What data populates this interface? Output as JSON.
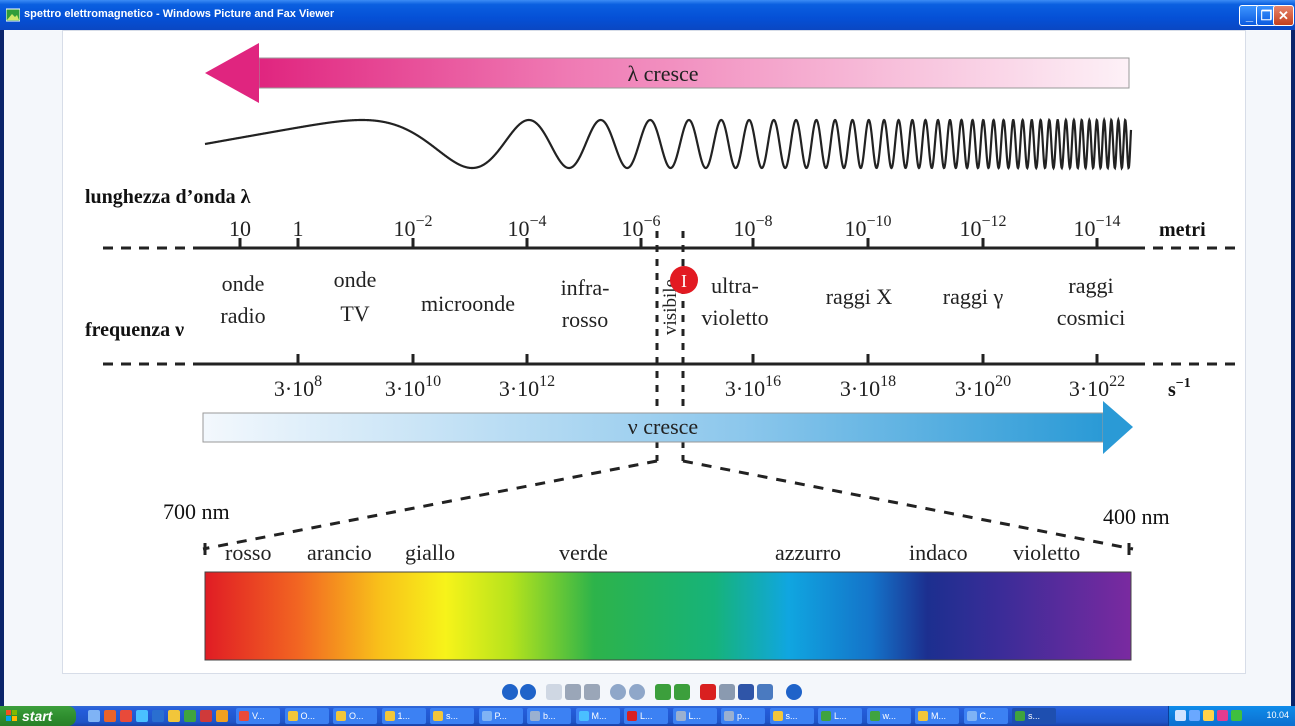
{
  "window": {
    "title": "spettro elettromagnetico - Windows Picture and Fax Viewer"
  },
  "figure": {
    "lambda_arrow": "λ cresce",
    "nu_arrow": "ν cresce",
    "wavelength_label": "lunghezza d’onda λ",
    "frequency_label": "frequenza ν",
    "wavelength_unit": "metri",
    "frequency_unit": "s",
    "frequency_unit_exp": "−1",
    "wavelength_ticks": [
      {
        "base": "10",
        "exp": ""
      },
      {
        "base": "1",
        "exp": ""
      },
      {
        "base": "10",
        "exp": "−2"
      },
      {
        "base": "10",
        "exp": "−4"
      },
      {
        "base": "10",
        "exp": "−6"
      },
      {
        "base": "10",
        "exp": "−8"
      },
      {
        "base": "10",
        "exp": "−10"
      },
      {
        "base": "10",
        "exp": "−12"
      },
      {
        "base": "10",
        "exp": "−14"
      }
    ],
    "frequency_ticks": [
      {
        "base": "3·10",
        "exp": "8"
      },
      {
        "base": "3·10",
        "exp": "10"
      },
      {
        "base": "3·10",
        "exp": "12"
      },
      {
        "base": "3·10",
        "exp": "16"
      },
      {
        "base": "3·10",
        "exp": "18"
      },
      {
        "base": "3·10",
        "exp": "20"
      },
      {
        "base": "3·10",
        "exp": "22"
      }
    ],
    "bands": [
      {
        "line1": "onde",
        "line2": "radio"
      },
      {
        "line1": "onde",
        "line2": "TV"
      },
      {
        "line1": "microonde",
        "line2": ""
      },
      {
        "line1": "infra-",
        "line2": "rosso"
      },
      {
        "line1": "visibile",
        "line2": ""
      },
      {
        "line1": "ultra-",
        "line2": "violetto"
      },
      {
        "line1": "raggi X",
        "line2": ""
      },
      {
        "line1": "raggi γ",
        "line2": ""
      },
      {
        "line1": "raggi",
        "line2": "cosmici"
      }
    ],
    "nm_left": "700 nm",
    "nm_right": "400 nm",
    "colors": [
      "rosso",
      "arancio",
      "giallo",
      "verde",
      "azzurro",
      "indaco",
      "violetto"
    ],
    "cursor_marker": "I"
  },
  "toolbar": {
    "buttons": [
      "previous-image-icon",
      "next-image-icon",
      "best-fit-icon",
      "actual-size-icon",
      "slideshow-icon",
      "zoom-in-icon",
      "zoom-out-icon",
      "rotate-clockwise-icon",
      "rotate-counterclockwise-icon",
      "delete-icon",
      "print-icon",
      "save-icon",
      "open-editor-icon",
      "help-icon"
    ]
  },
  "taskbar": {
    "start_label": "start",
    "tasks": [
      "V...",
      "O...",
      "O...",
      "1...",
      "s...",
      "P...",
      "b...",
      "M...",
      "L...",
      "L...",
      "p...",
      "s...",
      "L...",
      "w...",
      "M...",
      "C...",
      "s..."
    ],
    "clock": "10.04"
  }
}
